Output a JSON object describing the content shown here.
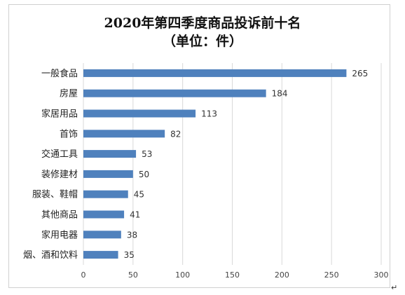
{
  "chart_data": {
    "type": "bar",
    "orientation": "horizontal",
    "title": "2020年第四季度商品投诉前十名",
    "subtitle": "（单位：件）",
    "categories": [
      "一般食品",
      "房屋",
      "家居用品",
      "首饰",
      "交通工具",
      "装修建材",
      "服装、鞋帽",
      "其他商品",
      "家用电器",
      "烟、酒和饮料"
    ],
    "values": [
      265,
      184,
      113,
      82,
      53,
      50,
      45,
      41,
      38,
      35
    ],
    "xlim": [
      0,
      300
    ],
    "xticks": [
      "0",
      "50",
      "100",
      "150",
      "200",
      "250",
      "300"
    ],
    "grid": true,
    "bar_color": "#4f81bd",
    "grid_color": "#d9d9d9",
    "data_labels": true
  }
}
